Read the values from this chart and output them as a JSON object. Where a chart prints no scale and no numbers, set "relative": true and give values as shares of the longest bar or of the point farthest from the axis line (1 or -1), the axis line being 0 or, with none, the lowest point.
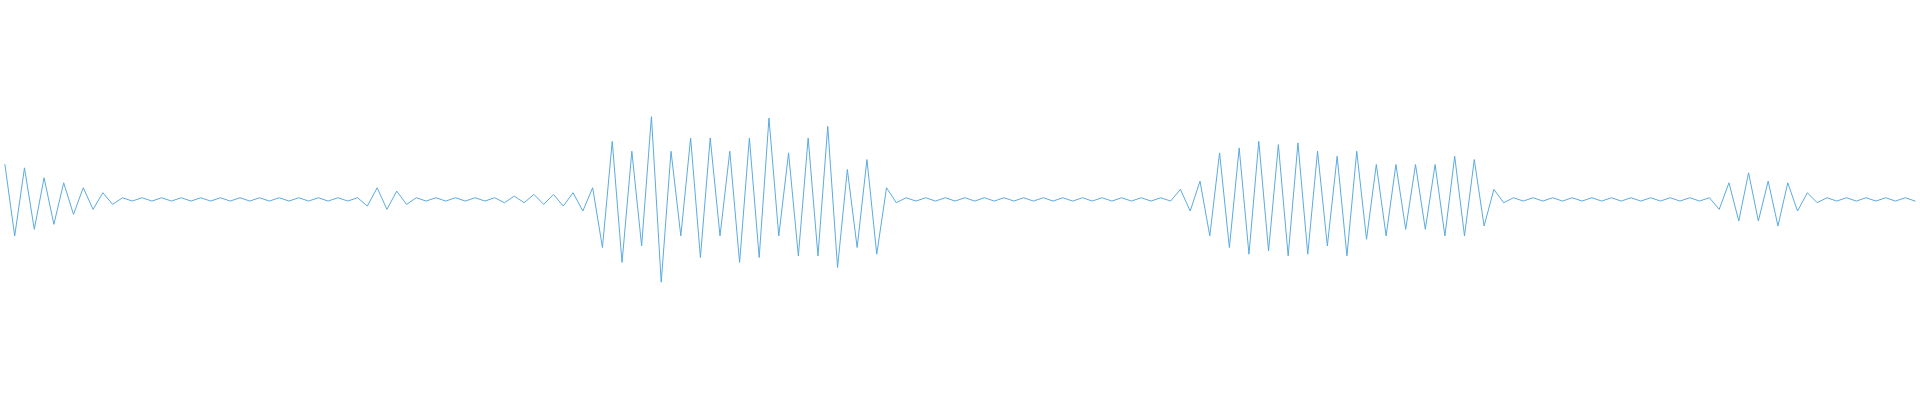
{
  "chart_data": {
    "type": "line",
    "relative": true,
    "color": "#55a8e0",
    "categories": [
      null,
      null,
      null,
      null,
      null,
      null,
      null,
      null,
      null,
      null,
      null,
      null,
      null,
      null,
      null,
      null,
      null,
      null,
      null,
      null,
      null,
      null,
      null,
      null,
      null,
      null,
      null,
      null,
      null,
      null,
      null,
      null,
      null,
      null,
      null,
      null,
      null,
      null,
      null,
      null,
      null,
      null,
      null,
      null,
      null,
      null,
      null,
      null,
      null,
      null,
      null,
      null,
      null,
      null,
      null,
      null,
      null,
      null,
      null,
      null,
      null,
      null,
      null,
      null,
      null,
      null,
      null,
      null,
      null,
      null,
      null,
      null,
      null,
      null,
      null,
      null,
      null,
      null,
      null,
      null,
      null,
      null,
      null,
      null,
      null,
      null,
      null,
      null,
      null,
      null,
      null,
      null,
      null,
      null,
      null,
      null,
      null,
      null,
      null,
      null,
      null,
      null,
      null,
      null,
      null,
      null,
      null,
      null,
      null,
      null,
      null,
      null,
      null,
      null,
      null,
      null,
      null,
      null,
      null,
      null,
      null,
      null,
      null,
      null,
      null,
      null,
      null,
      null,
      null,
      null,
      null,
      null,
      null,
      null,
      null,
      null,
      null,
      null,
      null,
      null,
      null,
      null,
      null,
      null,
      null,
      null,
      null,
      null,
      null,
      null,
      null,
      null,
      null,
      null,
      null,
      null,
      null,
      null,
      null,
      null,
      null,
      null,
      null,
      null,
      null,
      null,
      null,
      null,
      null,
      null,
      null,
      null,
      null,
      null,
      null,
      null,
      null,
      null,
      null,
      null,
      null,
      null,
      null,
      null,
      null,
      null,
      null,
      null,
      null,
      null,
      null,
      null,
      null,
      null,
      null,
      null
    ],
    "values": [
      0.71,
      0.28,
      0.69,
      0.32,
      0.63,
      0.35,
      0.6,
      0.41,
      0.57,
      0.44,
      0.54,
      0.47,
      0.51,
      0.49,
      0.51,
      0.49,
      0.51,
      0.49,
      0.51,
      0.49,
      0.51,
      0.49,
      0.51,
      0.49,
      0.51,
      0.49,
      0.51,
      0.49,
      0.51,
      0.49,
      0.51,
      0.49,
      0.51,
      0.49,
      0.51,
      0.49,
      0.51,
      0.46,
      0.57,
      0.44,
      0.55,
      0.47,
      0.51,
      0.49,
      0.51,
      0.49,
      0.51,
      0.49,
      0.51,
      0.49,
      0.51,
      0.48,
      0.52,
      0.48,
      0.53,
      0.47,
      0.53,
      0.46,
      0.54,
      0.43,
      0.57,
      0.21,
      0.85,
      0.12,
      0.79,
      0.22,
      1.0,
      0.0,
      0.79,
      0.28,
      0.87,
      0.15,
      0.87,
      0.28,
      0.79,
      0.12,
      0.87,
      0.15,
      0.99,
      0.28,
      0.78,
      0.16,
      0.87,
      0.16,
      0.94,
      0.09,
      0.68,
      0.21,
      0.74,
      0.17,
      0.57,
      0.48,
      0.51,
      0.49,
      0.51,
      0.49,
      0.51,
      0.49,
      0.51,
      0.49,
      0.51,
      0.49,
      0.51,
      0.49,
      0.51,
      0.49,
      0.51,
      0.49,
      0.51,
      0.49,
      0.51,
      0.49,
      0.51,
      0.49,
      0.51,
      0.49,
      0.51,
      0.49,
      0.51,
      0.49,
      0.56,
      0.43,
      0.61,
      0.28,
      0.78,
      0.21,
      0.81,
      0.17,
      0.85,
      0.19,
      0.83,
      0.16,
      0.84,
      0.17,
      0.79,
      0.22,
      0.76,
      0.16,
      0.79,
      0.26,
      0.71,
      0.28,
      0.71,
      0.32,
      0.71,
      0.32,
      0.71,
      0.28,
      0.76,
      0.28,
      0.74,
      0.34,
      0.56,
      0.48,
      0.51,
      0.49,
      0.51,
      0.49,
      0.51,
      0.49,
      0.51,
      0.49,
      0.51,
      0.49,
      0.51,
      0.49,
      0.51,
      0.49,
      0.51,
      0.49,
      0.51,
      0.49,
      0.51,
      0.49,
      0.51,
      0.44,
      0.6,
      0.37,
      0.66,
      0.37,
      0.61,
      0.34,
      0.6,
      0.43,
      0.54,
      0.48,
      0.51,
      0.49,
      0.51,
      0.49,
      0.51,
      0.49,
      0.51,
      0.49,
      0.51,
      0.49
    ]
  }
}
